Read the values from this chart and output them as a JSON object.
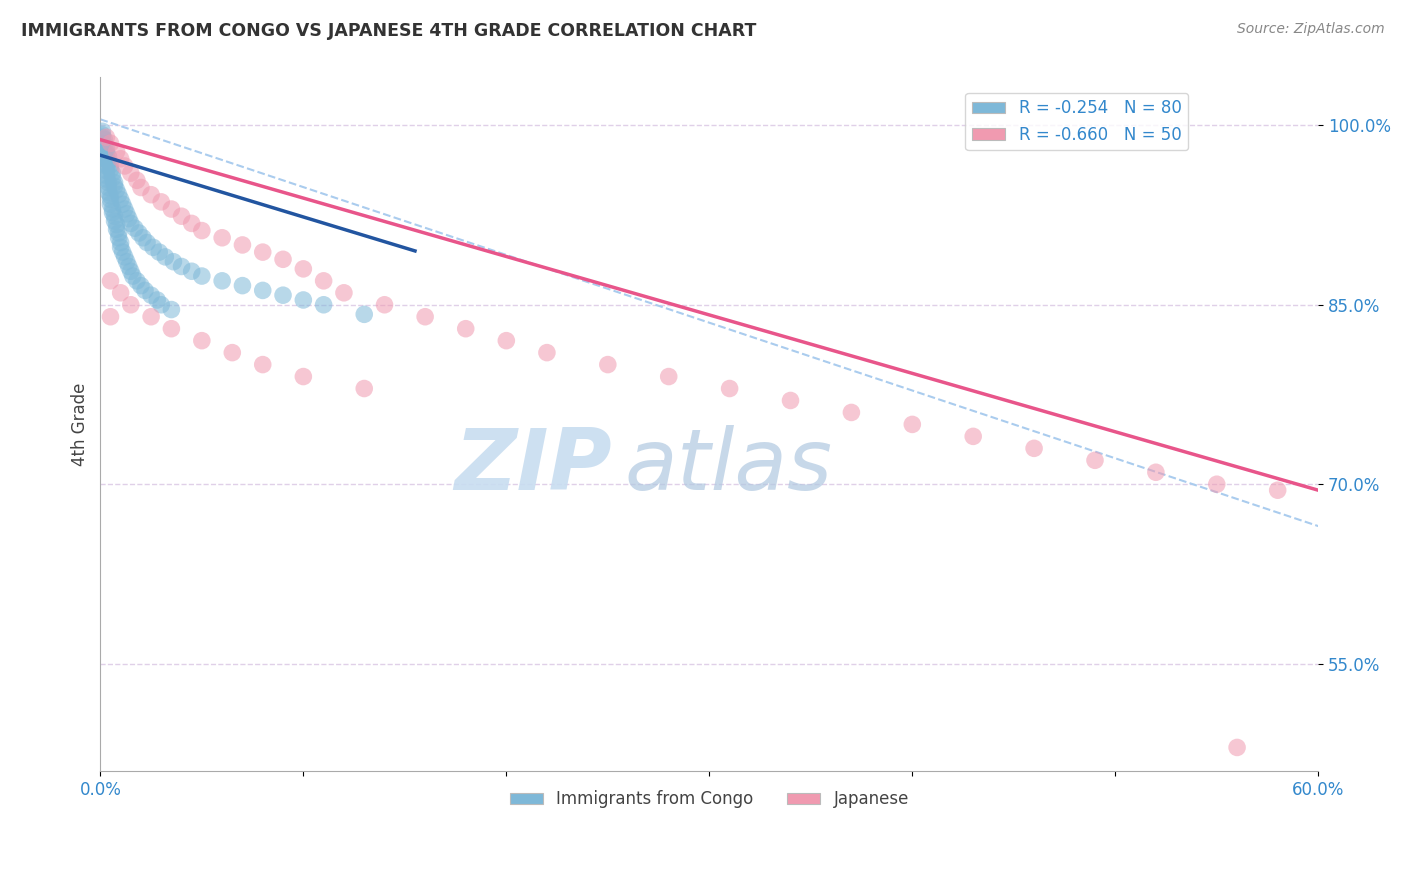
{
  "title": "IMMIGRANTS FROM CONGO VS JAPANESE 4TH GRADE CORRELATION CHART",
  "source_text": "Source: ZipAtlas.com",
  "ylabel": "4th Grade",
  "watermark_zip": "ZIP",
  "watermark_atlas": "atlas",
  "xlim": [
    0.0,
    0.6
  ],
  "ylim": [
    0.46,
    1.04
  ],
  "x_ticks": [
    0.0,
    0.1,
    0.2,
    0.3,
    0.4,
    0.5,
    0.6
  ],
  "x_tick_labels": [
    "0.0%",
    "",
    "",
    "",
    "",
    "",
    "60.0%"
  ],
  "y_ticks": [
    0.55,
    0.7,
    0.85,
    1.0
  ],
  "y_tick_labels": [
    "55.0%",
    "70.0%",
    "85.0%",
    "100.0%"
  ],
  "legend_r1": "R = -0.254   N = 80",
  "legend_r2": "R = -0.660   N = 50",
  "bottom_legend1": "Immigrants from Congo",
  "bottom_legend2": "Japanese",
  "blue_scatter_x": [
    0.001,
    0.001,
    0.001,
    0.002,
    0.002,
    0.002,
    0.002,
    0.003,
    0.003,
    0.003,
    0.003,
    0.004,
    0.004,
    0.004,
    0.005,
    0.005,
    0.005,
    0.006,
    0.006,
    0.007,
    0.007,
    0.008,
    0.008,
    0.009,
    0.009,
    0.01,
    0.01,
    0.011,
    0.012,
    0.013,
    0.014,
    0.015,
    0.016,
    0.018,
    0.02,
    0.022,
    0.025,
    0.028,
    0.03,
    0.035,
    0.001,
    0.001,
    0.002,
    0.002,
    0.003,
    0.003,
    0.004,
    0.004,
    0.005,
    0.005,
    0.006,
    0.006,
    0.007,
    0.007,
    0.008,
    0.009,
    0.01,
    0.011,
    0.012,
    0.013,
    0.014,
    0.015,
    0.017,
    0.019,
    0.021,
    0.023,
    0.026,
    0.029,
    0.032,
    0.036,
    0.04,
    0.045,
    0.05,
    0.06,
    0.07,
    0.08,
    0.09,
    0.1,
    0.11,
    0.13
  ],
  "blue_scatter_y": [
    0.99,
    0.985,
    0.98,
    0.978,
    0.975,
    0.972,
    0.968,
    0.966,
    0.962,
    0.958,
    0.955,
    0.952,
    0.948,
    0.944,
    0.941,
    0.938,
    0.934,
    0.93,
    0.927,
    0.924,
    0.92,
    0.917,
    0.913,
    0.91,
    0.906,
    0.902,
    0.898,
    0.894,
    0.89,
    0.886,
    0.882,
    0.878,
    0.874,
    0.87,
    0.866,
    0.862,
    0.858,
    0.854,
    0.85,
    0.846,
    0.995,
    0.992,
    0.988,
    0.984,
    0.98,
    0.977,
    0.974,
    0.97,
    0.967,
    0.963,
    0.96,
    0.956,
    0.952,
    0.949,
    0.946,
    0.942,
    0.938,
    0.934,
    0.93,
    0.926,
    0.922,
    0.918,
    0.914,
    0.91,
    0.906,
    0.902,
    0.898,
    0.894,
    0.89,
    0.886,
    0.882,
    0.878,
    0.874,
    0.87,
    0.866,
    0.862,
    0.858,
    0.854,
    0.85,
    0.842
  ],
  "pink_scatter_x": [
    0.003,
    0.005,
    0.008,
    0.01,
    0.012,
    0.015,
    0.018,
    0.02,
    0.025,
    0.03,
    0.035,
    0.04,
    0.045,
    0.05,
    0.06,
    0.07,
    0.08,
    0.09,
    0.1,
    0.11,
    0.12,
    0.14,
    0.16,
    0.18,
    0.2,
    0.22,
    0.25,
    0.28,
    0.31,
    0.34,
    0.37,
    0.4,
    0.43,
    0.46,
    0.49,
    0.52,
    0.55,
    0.58,
    0.005,
    0.01,
    0.015,
    0.025,
    0.035,
    0.05,
    0.065,
    0.08,
    0.1,
    0.13,
    0.56,
    0.005
  ],
  "pink_scatter_y": [
    0.99,
    0.985,
    0.978,
    0.972,
    0.966,
    0.96,
    0.954,
    0.948,
    0.942,
    0.936,
    0.93,
    0.924,
    0.918,
    0.912,
    0.906,
    0.9,
    0.894,
    0.888,
    0.88,
    0.87,
    0.86,
    0.85,
    0.84,
    0.83,
    0.82,
    0.81,
    0.8,
    0.79,
    0.78,
    0.77,
    0.76,
    0.75,
    0.74,
    0.73,
    0.72,
    0.71,
    0.7,
    0.695,
    0.87,
    0.86,
    0.85,
    0.84,
    0.83,
    0.82,
    0.81,
    0.8,
    0.79,
    0.78,
    0.48,
    0.84
  ],
  "blue_line_x": [
    0.0,
    0.155
  ],
  "blue_line_y": [
    0.975,
    0.895
  ],
  "pink_line_x": [
    0.0,
    0.6
  ],
  "pink_line_y": [
    0.988,
    0.695
  ],
  "dashed_line_x": [
    0.0,
    0.6
  ],
  "dashed_line_y": [
    1.005,
    0.665
  ],
  "dot_color_blue": "#7eb8d8",
  "dot_color_pink": "#f09ab0",
  "line_color_blue": "#2255a0",
  "line_color_pink": "#e8558a",
  "dashed_line_color": "#aaccee",
  "grid_color": "#e0d0e8",
  "title_color": "#333333",
  "source_color": "#888888",
  "ylabel_color": "#444444",
  "tick_color": "#3388cc",
  "watermark_zip_color": "#c8ddf0",
  "watermark_atlas_color": "#b0c8e0",
  "legend_border_color": "#cccccc"
}
